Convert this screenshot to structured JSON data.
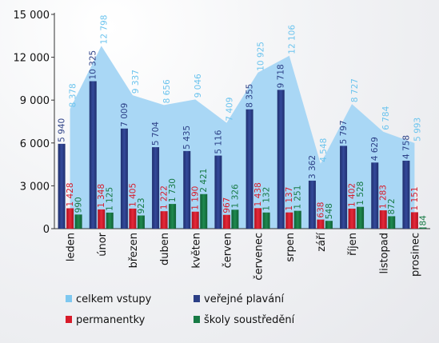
{
  "chart_data": {
    "type": "bar",
    "categories": [
      "leden",
      "únor",
      "březen",
      "duben",
      "květen",
      "červen",
      "červenec",
      "srpen",
      "září",
      "říjen",
      "listopad",
      "prosinec"
    ],
    "ylim": [
      0,
      15000
    ],
    "yticks": [
      0,
      3000,
      6000,
      9000,
      12000,
      15000
    ],
    "ytick_labels": [
      "0",
      "3 000",
      "6 000",
      "9 000",
      "12 000",
      "15 000"
    ],
    "grid": false,
    "legend_position": "bottom",
    "series": [
      {
        "name": "celkem vstupy",
        "kind": "area",
        "color": "#a9d7f5",
        "label_color": "#6cc4ee",
        "values": [
          8378,
          12798,
          9337,
          8656,
          9046,
          7409,
          10925,
          12106,
          4548,
          8727,
          6784,
          5993
        ],
        "labels": [
          "8 378",
          "12 798",
          "9 337",
          "8 656",
          "9 046",
          "7 409",
          "10 925",
          "12 106",
          "4 548",
          "8 727",
          "6 784",
          "5 993"
        ]
      },
      {
        "name": "veřejné plavání",
        "kind": "bar",
        "color": "#2b3f86",
        "label_color": "#2b3f86",
        "values": [
          5940,
          10325,
          7009,
          5704,
          5435,
          5116,
          8355,
          9718,
          3362,
          5797,
          4629,
          4758
        ],
        "labels": [
          "5 940",
          "10 325",
          "7 009",
          "5 704",
          "5 435",
          "5 116",
          "8 355",
          "9 718",
          "3 362",
          "5 797",
          "4 629",
          "4 758"
        ]
      },
      {
        "name": "permanentky",
        "kind": "bar",
        "color": "#d81b2a",
        "label_color": "#d81b2a",
        "values": [
          1428,
          1348,
          1405,
          1222,
          1190,
          967,
          1438,
          1137,
          638,
          1402,
          1283,
          1151
        ],
        "labels": [
          "1 428",
          "1 348",
          "1 405",
          "1 222",
          "1 190",
          "967",
          "1 438",
          "1 137",
          "638",
          "1 402",
          "1 283",
          "1 151"
        ]
      },
      {
        "name": "školy soustředění",
        "kind": "bar",
        "color": "#177a45",
        "label_color": "#177a45",
        "values": [
          990,
          1125,
          923,
          1730,
          2421,
          1326,
          1132,
          1251,
          548,
          1528,
          872,
          84
        ],
        "labels": [
          "990",
          "1 125",
          "923",
          "1 730",
          "2 421",
          "1 326",
          "1 132",
          "1 251",
          "548",
          "1 528",
          "872",
          "84"
        ]
      }
    ]
  }
}
